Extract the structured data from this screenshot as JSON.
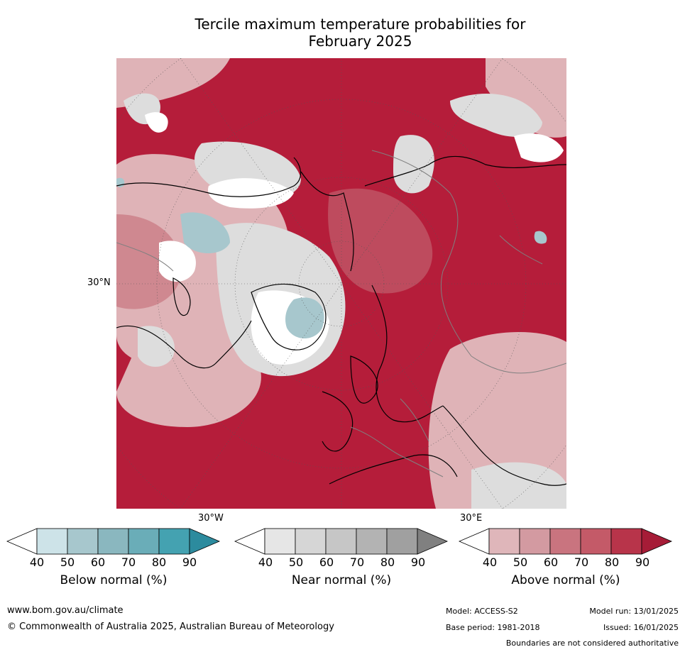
{
  "title": {
    "line1": "Tercile maximum temperature probabilities for",
    "line2": "February 2025"
  },
  "map": {
    "lat_label": "30°N",
    "lon_labels": {
      "west": "30°W",
      "east": "30°E"
    },
    "colors": {
      "background": "#b51d3a",
      "above_light": "#dfb3b7",
      "above_mid": "#c56a76",
      "near": "#dddddd",
      "below": "#a7c7cd",
      "coast": "#000000",
      "border": "#808080",
      "grid": "#555555"
    }
  },
  "legends": [
    {
      "title": "Below normal (%)",
      "ticks": [
        "40",
        "50",
        "60",
        "70",
        "80",
        "90"
      ],
      "colors": [
        "#ffffff",
        "#cde3e8",
        "#a7c7cd",
        "#8ab7bf",
        "#6aadb8",
        "#44a2b1",
        "#2c8b9e"
      ]
    },
    {
      "title": "Near normal (%)",
      "ticks": [
        "40",
        "50",
        "60",
        "70",
        "80",
        "90"
      ],
      "colors": [
        "#ffffff",
        "#e6e6e6",
        "#d6d6d6",
        "#c6c6c6",
        "#b3b3b3",
        "#a0a0a0",
        "#808080"
      ]
    },
    {
      "title": "Above normal (%)",
      "ticks": [
        "40",
        "50",
        "60",
        "70",
        "80",
        "90"
      ],
      "colors": [
        "#ffffff",
        "#dfb6ba",
        "#d39aa1",
        "#c9747f",
        "#c45a68",
        "#b8344a",
        "#a61c37"
      ]
    }
  ],
  "footer": {
    "url": "www.bom.gov.au/climate",
    "copyright": "© Commonwealth of Australia 2025, Australian Bureau of Meteorology",
    "model": "Model: ACCESS-S2",
    "model_run": "Model run: 13/01/2025",
    "base_period": "Base period: 1981-2018",
    "issued": "Issued: 16/01/2025",
    "disclaimer": "Boundaries are not considered authoritative"
  }
}
